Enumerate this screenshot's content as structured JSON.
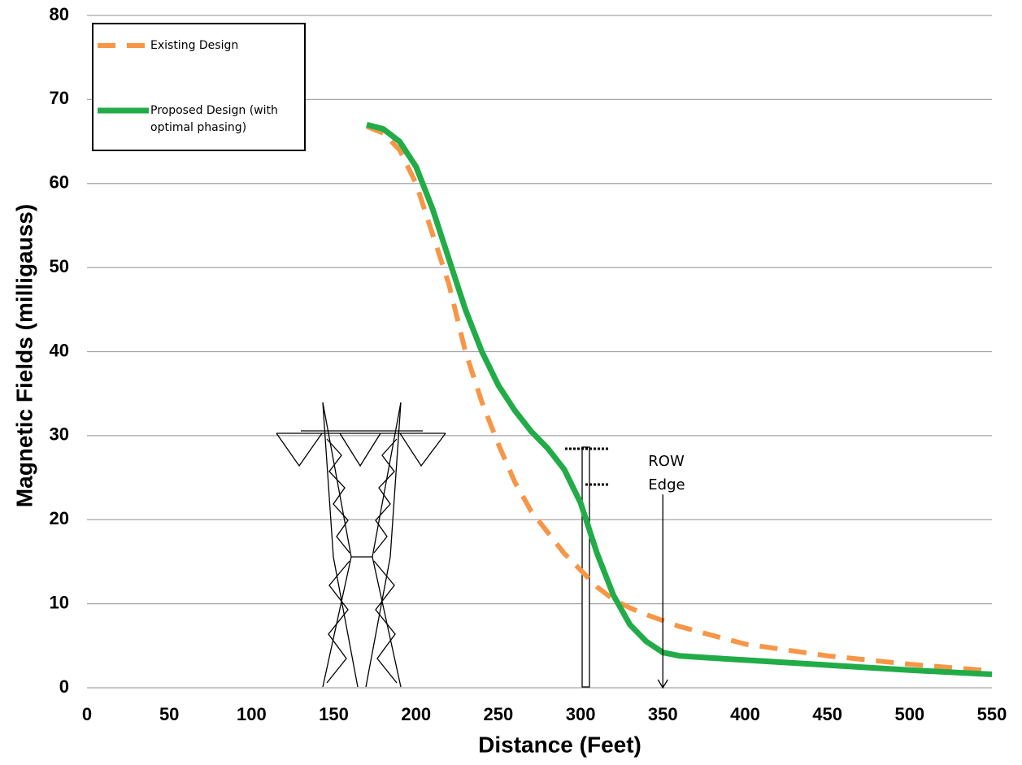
{
  "chart_data": {
    "type": "line",
    "xlabel": "Distance (Feet)",
    "ylabel": "Magnetic Fields (milligauss)",
    "x": [
      170,
      180,
      190,
      200,
      210,
      220,
      230,
      240,
      250,
      260,
      270,
      280,
      290,
      300,
      310,
      320,
      330,
      340,
      350,
      360,
      375,
      400,
      450,
      500,
      550
    ],
    "series": [
      {
        "name": "Existing Design",
        "color": "#f79646",
        "dashed": true,
        "values": [
          66.8,
          66,
          64,
          60,
          54,
          48,
          40,
          34,
          29,
          24.5,
          21,
          18.5,
          16,
          14,
          12,
          10.5,
          9.5,
          8.7,
          8,
          7.3,
          6.5,
          5.2,
          3.8,
          2.8,
          2.0
        ]
      },
      {
        "name": "Proposed Design (with optimal phasing)",
        "color": "#22ac48",
        "dashed": false,
        "values": [
          67,
          66.5,
          65,
          62,
          57,
          51,
          45,
          40,
          36,
          33,
          30.5,
          28.5,
          26,
          22,
          16,
          11,
          7.5,
          5.5,
          4.2,
          3.8,
          3.6,
          3.3,
          2.7,
          2.1,
          1.6
        ]
      }
    ],
    "annotation": {
      "lines": [
        "ROW",
        "Edge"
      ],
      "x": 350,
      "y": 23
    },
    "xlim": [
      0,
      550
    ],
    "xticks": [
      0,
      50,
      100,
      150,
      200,
      250,
      300,
      350,
      400,
      450,
      500,
      550
    ],
    "ylim": [
      0,
      80
    ],
    "yticks": [
      0,
      10,
      20,
      30,
      40,
      50,
      60,
      70,
      80
    ],
    "grid": true,
    "legend": "upper-left"
  }
}
